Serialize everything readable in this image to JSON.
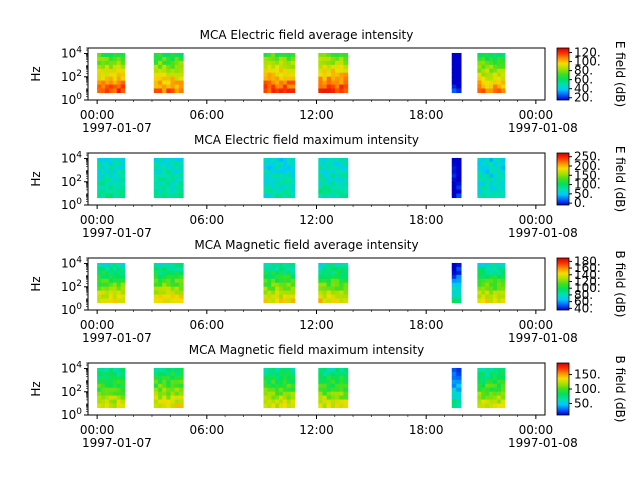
{
  "time_axis": {
    "ticks": [
      "00:00",
      "06:00",
      "12:00",
      "18:00",
      "00:00"
    ],
    "tick_hours": [
      0,
      6,
      12,
      18,
      24
    ],
    "start_date": "1997-01-07",
    "end_date": "1997-01-08",
    "xlim_hours": [
      -0.5,
      24.5
    ]
  },
  "data_intervals_hours": [
    [
      0,
      1.5
    ],
    [
      3.1,
      4.7
    ],
    [
      9.1,
      10.8
    ],
    [
      12.1,
      13.7
    ],
    [
      19.4,
      19.9
    ],
    [
      20.8,
      22.3
    ]
  ],
  "colorscale": [
    "#0000cc",
    "#0060ff",
    "#00c8ff",
    "#00e0b0",
    "#00e060",
    "#40e020",
    "#a8e000",
    "#f0e000",
    "#ff9000",
    "#ff3000",
    "#d00000"
  ],
  "chart_data": [
    {
      "type": "heatmap",
      "title": "MCA  Electric field average intensity",
      "ylabel": "Hz",
      "yticks": [
        "10^0",
        "10^2",
        "10^4"
      ],
      "ylim": [
        1,
        30000
      ],
      "colorbar_label": "E field (dB)",
      "colorbar_ticks": [
        "20.",
        "40.",
        "60.",
        "80.",
        "100.",
        "120."
      ],
      "colorbar_range": [
        15,
        130
      ],
      "level_low": 0.82,
      "level_high": 0.42,
      "segment_offsets": [
        0.06,
        0.02,
        0.08,
        0.1,
        -0.74,
        0.0
      ]
    },
    {
      "type": "heatmap",
      "title": "MCA  Electric field maximum intensity",
      "ylabel": "Hz",
      "yticks": [
        "10^0",
        "10^2",
        "10^4"
      ],
      "ylim": [
        1,
        30000
      ],
      "colorbar_label": "E field (dB)",
      "colorbar_ticks": [
        "0.",
        "50.",
        "100.",
        "150.",
        "200.",
        "250."
      ],
      "colorbar_range": [
        -10,
        270
      ],
      "level_low": 0.33,
      "level_high": 0.27,
      "segment_offsets": [
        0.0,
        0.0,
        -0.03,
        0.0,
        -0.3,
        -0.04
      ]
    },
    {
      "type": "heatmap",
      "title": "MCA  Magnetic field average intensity",
      "ylabel": "Hz",
      "yticks": [
        "10^0",
        "10^2",
        "10^4"
      ],
      "ylim": [
        1,
        30000
      ],
      "colorbar_label": "B field (dB)",
      "colorbar_ticks": [
        "40.",
        "60.",
        "80.",
        "100.",
        "120.",
        "140.",
        "160.",
        "180."
      ],
      "colorbar_range": [
        35,
        190
      ],
      "level_low": 0.7,
      "level_high": 0.3,
      "segment_offsets": [
        0.0,
        0.02,
        0.0,
        0.0,
        -0.33,
        -0.02
      ]
    },
    {
      "type": "heatmap",
      "title": "MCA  Magnetic field maximum intensity",
      "ylabel": "Hz",
      "yticks": [
        "10^0",
        "10^2",
        "10^4"
      ],
      "ylim": [
        1,
        30000
      ],
      "colorbar_label": "B field (dB)",
      "colorbar_ticks": [
        "50.",
        "100.",
        "150."
      ],
      "colorbar_range": [
        10,
        190
      ],
      "level_low": 0.66,
      "level_high": 0.34,
      "segment_offsets": [
        0.0,
        0.03,
        0.0,
        0.0,
        -0.3,
        -0.01
      ]
    }
  ]
}
